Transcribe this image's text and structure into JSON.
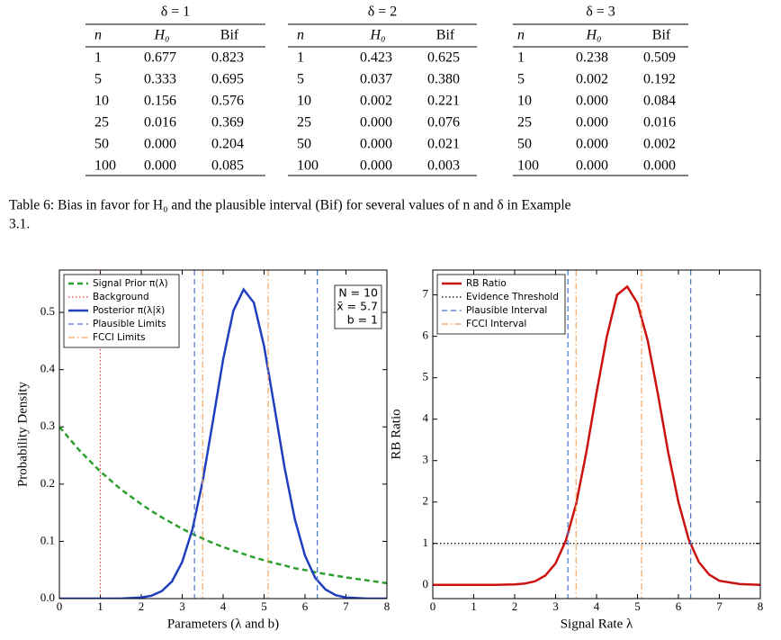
{
  "tables": [
    {
      "title": "δ = 1",
      "columns": [
        "n",
        "H₀",
        "Bif"
      ],
      "rows": [
        [
          "1",
          "0.677",
          "0.823"
        ],
        [
          "5",
          "0.333",
          "0.695"
        ],
        [
          "10",
          "0.156",
          "0.576"
        ],
        [
          "25",
          "0.016",
          "0.369"
        ],
        [
          "50",
          "0.000",
          "0.204"
        ],
        [
          "100",
          "0.000",
          "0.085"
        ]
      ]
    },
    {
      "title": "δ = 2",
      "columns": [
        "n",
        "H₀",
        "Bif"
      ],
      "rows": [
        [
          "1",
          "0.423",
          "0.625"
        ],
        [
          "5",
          "0.037",
          "0.380"
        ],
        [
          "10",
          "0.002",
          "0.221"
        ],
        [
          "25",
          "0.000",
          "0.076"
        ],
        [
          "50",
          "0.000",
          "0.021"
        ],
        [
          "100",
          "0.000",
          "0.003"
        ]
      ]
    },
    {
      "title": "δ = 3",
      "columns": [
        "n",
        "H₀",
        "Bif"
      ],
      "rows": [
        [
          "1",
          "0.238",
          "0.509"
        ],
        [
          "5",
          "0.002",
          "0.192"
        ],
        [
          "10",
          "0.000",
          "0.084"
        ],
        [
          "25",
          "0.000",
          "0.016"
        ],
        [
          "50",
          "0.000",
          "0.002"
        ],
        [
          "100",
          "0.000",
          "0.000"
        ]
      ]
    }
  ],
  "caption": [
    "Table 6: Bias in favor for H₀ and the plausible interval (Bif) for several values of n and δ in Example",
    "3.1."
  ],
  "chart_data": [
    {
      "type": "line",
      "xlabel": "Parameters (λ and b)",
      "ylabel": "Probability Density",
      "xlim": [
        0,
        8
      ],
      "xticks": [
        0,
        1,
        2,
        3,
        4,
        5,
        6,
        7,
        8
      ],
      "ylim": [
        0,
        0.574
      ],
      "yticks": [
        {
          "value": 0,
          "label": "0.0"
        },
        0.1,
        0.2,
        0.3,
        0.4,
        0.5
      ],
      "legend": "upper left",
      "annotation": [
        "N = 10",
        "x̄ = 5.7",
        "b = 1"
      ],
      "x": [
        0,
        0.5,
        1,
        1.5,
        2,
        2.25,
        2.5,
        2.75,
        3,
        3.25,
        3.5,
        3.75,
        4,
        4.25,
        4.5,
        4.75,
        5,
        5.25,
        5.5,
        5.75,
        6,
        6.25,
        6.5,
        6.75,
        7,
        7.5,
        8
      ],
      "series": [
        {
          "name": "Signal Prior π(λ)",
          "color": "#2ca02c",
          "style": "dashed",
          "values": [
            0.3,
            0.258,
            0.222,
            0.191,
            0.165,
            0.153,
            0.142,
            0.132,
            0.122,
            0.113,
            0.105,
            0.097,
            0.09,
            0.084,
            0.078,
            0.072,
            0.067,
            0.062,
            0.058,
            0.053,
            0.05,
            0.046,
            0.043,
            0.04,
            0.037,
            0.032,
            0.027
          ]
        },
        {
          "name": "Background",
          "color": "#e03c3c",
          "style": "dotted",
          "at_x": [
            1
          ]
        },
        {
          "name": "Posterior π(λ|x̄)",
          "color": "#1f3fbf",
          "style": "solid",
          "values": [
            0,
            0,
            0,
            0,
            0.002,
            0.005,
            0.013,
            0.03,
            0.064,
            0.121,
            0.205,
            0.31,
            0.418,
            0.503,
            0.54,
            0.517,
            0.441,
            0.336,
            0.229,
            0.139,
            0.075,
            0.036,
            0.016,
            0.006,
            0.002,
            0,
            0
          ]
        },
        {
          "name": "Plausible Limits",
          "color": "#4a73c9",
          "style": "dashed",
          "at_x": [
            3.3,
            6.3
          ]
        },
        {
          "name": "FCCI Limits",
          "color": "#f4a460",
          "style": "dashdot",
          "at_x": [
            3.5,
            5.1
          ]
        }
      ]
    },
    {
      "type": "line",
      "xlabel": "Signal Rate λ",
      "ylabel": "RB Ratio",
      "xlim": [
        0,
        8
      ],
      "xticks": [
        0,
        1,
        2,
        3,
        4,
        5,
        6,
        7,
        8
      ],
      "ylim": [
        -0.33,
        7.6
      ],
      "yticks": [
        0,
        1,
        2,
        3,
        4,
        5,
        6,
        7
      ],
      "legend": "upper left",
      "x": [
        0,
        0.5,
        1,
        1.5,
        2,
        2.25,
        2.5,
        2.75,
        3,
        3.25,
        3.5,
        3.75,
        4,
        4.25,
        4.5,
        4.75,
        5,
        5.25,
        5.5,
        5.75,
        6,
        6.25,
        6.5,
        6.75,
        7,
        7.5,
        8
      ],
      "series": [
        {
          "name": "RB Ratio",
          "color": "#cc1111",
          "style": "solid",
          "values": [
            0,
            0,
            0,
            0,
            0.012,
            0.033,
            0.089,
            0.227,
            0.52,
            1.07,
            1.95,
            3.2,
            4.64,
            5.99,
            7.0,
            7.2,
            6.8,
            5.9,
            4.6,
            3.2,
            2.0,
            1.1,
            0.55,
            0.25,
            0.1,
            0.02,
            0
          ]
        },
        {
          "name": "Evidence Threshold",
          "color": "#000000",
          "style": "dotted",
          "at_y": [
            1
          ]
        },
        {
          "name": "Plausible Interval",
          "color": "#4a73c9",
          "style": "dashed",
          "at_x": [
            3.3,
            6.3
          ]
        },
        {
          "name": "FCCI Interval",
          "color": "#f4a460",
          "style": "dashdot",
          "at_x": [
            3.5,
            5.1
          ]
        }
      ]
    }
  ]
}
